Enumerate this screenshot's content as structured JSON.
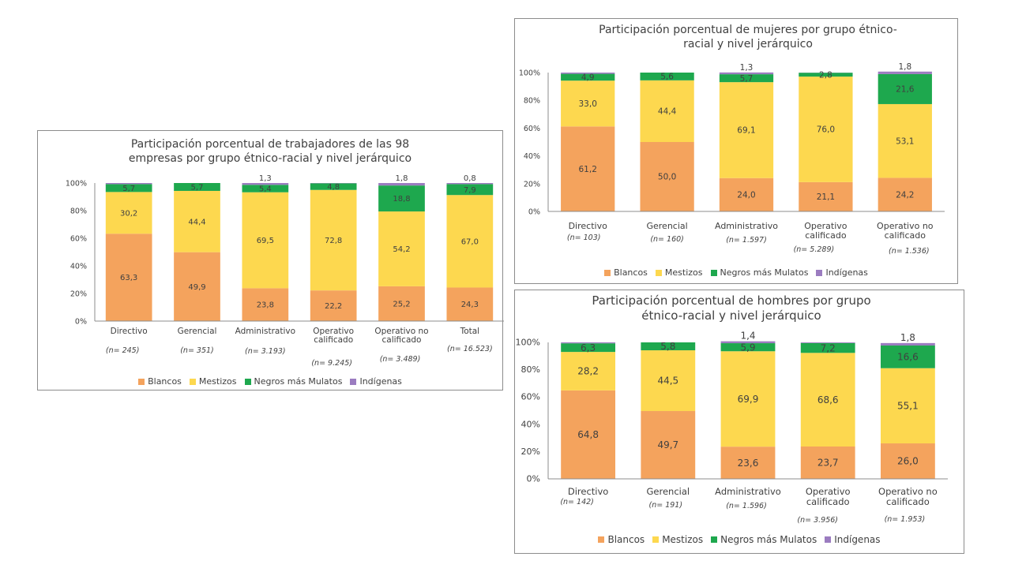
{
  "colors": {
    "blancos": "#f4a35d",
    "mestizos": "#fdd84f",
    "negros": "#1ea84e",
    "indigenas": "#9b7cc0"
  },
  "chart_data": [
    {
      "type": "bar",
      "stacked": true,
      "title": "Participación porcentual de trabajadores de las 98 empresas por grupo étnico-racial  y nivel jerárquico",
      "title_lines": [
        "Participación porcentual de trabajadores de las 98",
        "empresas por grupo étnico-racial  y nivel jerárquico"
      ],
      "categories": [
        "Directivo",
        "Gerencial",
        "Administrativo",
        "Operativo calificado",
        "Operativo no calificado",
        "Total"
      ],
      "category_lines": [
        [
          "Directivo"
        ],
        [
          "Gerencial"
        ],
        [
          "Administrativo"
        ],
        [
          "Operativo",
          "calificado"
        ],
        [
          "Operativo no",
          "calificado"
        ],
        [
          "Total"
        ]
      ],
      "n_labels": [
        "(n= 245)",
        "(n= 351)",
        "(n= 3.193)",
        "(n= 9.245)",
        "(n= 3.489)",
        "(n= 16.523)"
      ],
      "yticks": [
        "0%",
        "20%",
        "40%",
        "60%",
        "80%",
        "100%"
      ],
      "ylim": [
        0,
        100
      ],
      "series": [
        {
          "name": "Blancos",
          "key": "blancos",
          "values": [
            63.3,
            49.9,
            23.8,
            22.2,
            25.2,
            24.3
          ],
          "labels": [
            "63,3",
            "49,9",
            "23,8",
            "22,2",
            "25,2",
            "24,3"
          ]
        },
        {
          "name": "Mestizos",
          "key": "mestizos",
          "values": [
            30.2,
            44.4,
            69.5,
            72.8,
            54.2,
            67.0
          ],
          "labels": [
            "30,2",
            "44,4",
            "69,5",
            "72,8",
            "54,2",
            "67,0"
          ]
        },
        {
          "name": "Negros más Mulatos",
          "key": "negros",
          "values": [
            5.7,
            5.7,
            5.4,
            4.8,
            18.8,
            7.9
          ],
          "labels": [
            "5,7",
            "5,7",
            "5,4",
            "4,8",
            "18,8",
            "7,9"
          ]
        },
        {
          "name": "Indígenas",
          "key": "indigenas",
          "values": [
            0.8,
            0,
            1.3,
            0.2,
            1.8,
            0.8
          ],
          "labels": [
            "",
            "",
            "1,3",
            "",
            "1,8",
            "0,8"
          ]
        }
      ],
      "legend": [
        "Blancos",
        "Mestizos",
        "Negros más Mulatos",
        "Indígenas"
      ],
      "legend_position": "bottom"
    },
    {
      "type": "bar",
      "stacked": true,
      "title": "Participación porcentual de mujeres por grupo étnico-racial  y nivel jerárquico",
      "title_lines": [
        "Participación porcentual de mujeres por grupo étnico-",
        "racial  y nivel jerárquico"
      ],
      "categories": [
        "Directivo",
        "Gerencial",
        "Administrativo",
        "Operativo calificado",
        "Operativo no calificado"
      ],
      "category_lines": [
        [
          "Directivo"
        ],
        [
          "Gerencial"
        ],
        [
          "Administrativo"
        ],
        [
          "Operativo",
          "calificado"
        ],
        [
          "Operativo no",
          "calificado"
        ]
      ],
      "n_labels": [
        "(n= 103)",
        "(n= 160)",
        "(n= 1.597)",
        "(n= 5.289)",
        "(n= 1.536)"
      ],
      "yticks": [
        "0%",
        "20%",
        "40%",
        "60%",
        "80%",
        "100%"
      ],
      "ylim": [
        0,
        100
      ],
      "series": [
        {
          "name": "Blancos",
          "key": "blancos",
          "values": [
            61.2,
            50.0,
            24.0,
            21.1,
            24.2
          ],
          "labels": [
            "61,2",
            "50,0",
            "24,0",
            "21,1",
            "24,2"
          ]
        },
        {
          "name": "Mestizos",
          "key": "mestizos",
          "values": [
            33.0,
            44.4,
            69.1,
            76.0,
            53.1
          ],
          "labels": [
            "33,0",
            "44,4",
            "69,1",
            "76,0",
            "53,1"
          ]
        },
        {
          "name": "Negros más Mulatos",
          "key": "negros",
          "values": [
            4.9,
            5.6,
            5.7,
            2.8,
            21.6
          ],
          "labels": [
            "4,9",
            "5,6",
            "5,7",
            "2,8",
            "21,6"
          ]
        },
        {
          "name": "Indígenas",
          "key": "indigenas",
          "values": [
            0.9,
            0,
            1.3,
            0.1,
            1.8
          ],
          "labels": [
            "",
            "",
            "1,3",
            "",
            "1,8"
          ]
        }
      ],
      "legend": [
        "Blancos",
        "Mestizos",
        "Negros más Mulatos",
        "Indígenas"
      ],
      "legend_position": "bottom"
    },
    {
      "type": "bar",
      "stacked": true,
      "title": "Participación porcentual de hombres por grupo étnico-racial  y nivel jerárquico",
      "title_lines": [
        "Participación porcentual de hombres por grupo",
        "étnico-racial  y nivel jerárquico"
      ],
      "categories": [
        "Directivo",
        "Gerencial",
        "Administrativo",
        "Operativo calificado",
        "Operativo no calificado"
      ],
      "category_lines": [
        [
          "Directivo"
        ],
        [
          "Gerencial"
        ],
        [
          "Administrativo"
        ],
        [
          "Operativo",
          "calificado"
        ],
        [
          "Operativo no",
          "calificado"
        ]
      ],
      "n_labels": [
        "(n= 142)",
        "(n= 191)",
        "(n= 1.596)",
        "(n= 3.956)",
        "(n= 1.953)"
      ],
      "yticks": [
        "0%",
        "20%",
        "40%",
        "60%",
        "80%",
        "100%"
      ],
      "ylim": [
        0,
        100
      ],
      "series": [
        {
          "name": "Blancos",
          "key": "blancos",
          "values": [
            64.8,
            49.7,
            23.6,
            23.7,
            26.0
          ],
          "labels": [
            "64,8",
            "49,7",
            "23,6",
            "23,7",
            "26,0"
          ]
        },
        {
          "name": "Mestizos",
          "key": "mestizos",
          "values": [
            28.2,
            44.5,
            69.9,
            68.6,
            55.1
          ],
          "labels": [
            "28,2",
            "44,5",
            "69,9",
            "68,6",
            "55,1"
          ]
        },
        {
          "name": "Negros más Mulatos",
          "key": "negros",
          "values": [
            6.3,
            5.8,
            5.9,
            7.2,
            16.6
          ],
          "labels": [
            "6,3",
            "5,8",
            "5,9",
            "7,2",
            "16,6"
          ]
        },
        {
          "name": "Indígenas",
          "key": "indigenas",
          "values": [
            0.7,
            0,
            1.4,
            0.5,
            1.8
          ],
          "labels": [
            "",
            "",
            "1,4",
            "",
            "1,8"
          ]
        }
      ],
      "legend": [
        "Blancos",
        "Mestizos",
        "Negros más Mulatos",
        "Indígenas"
      ],
      "legend_position": "bottom"
    }
  ]
}
